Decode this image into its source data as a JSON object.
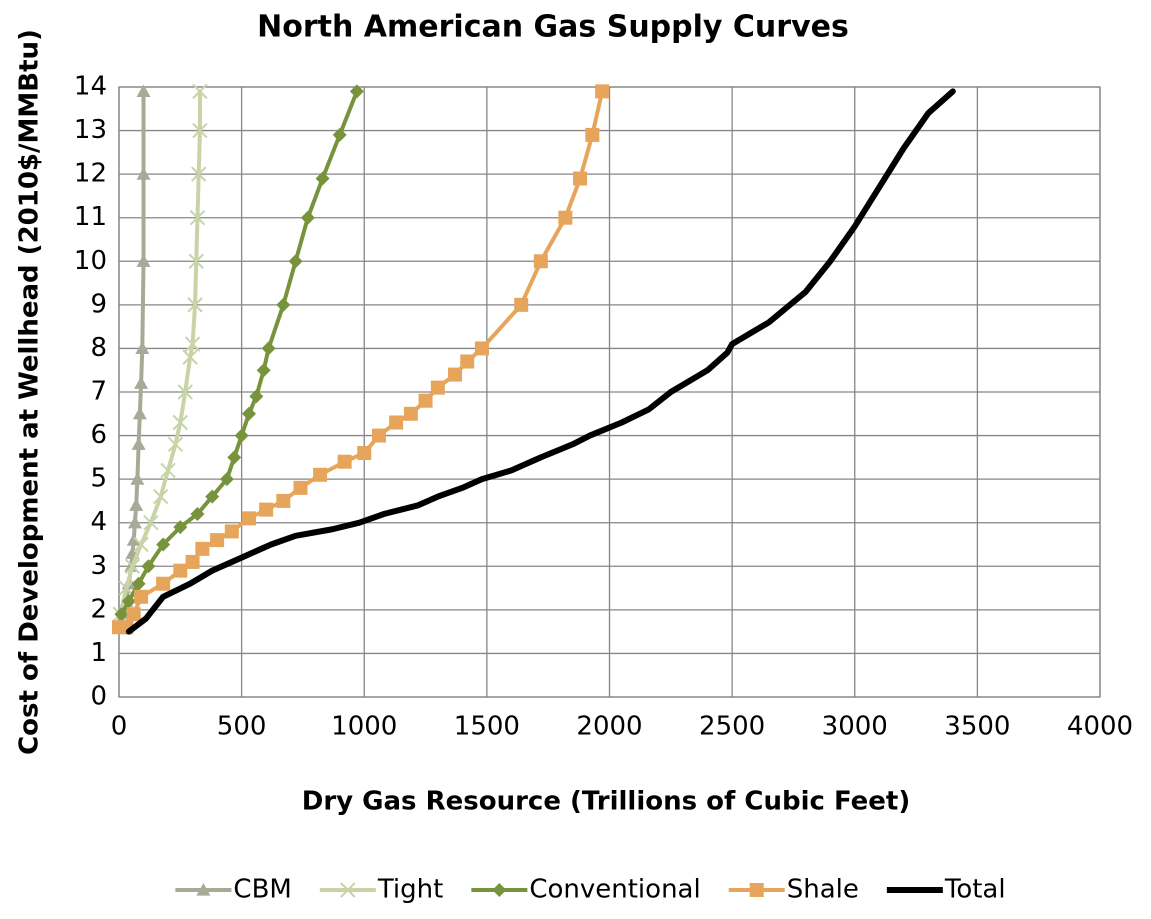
{
  "chart_data": {
    "type": "line",
    "title": "North American Gas Supply Curves",
    "xlabel": "Dry Gas Resource (Trillions of Cubic Feet)",
    "ylabel": "Cost of Development at Wellhead (2010$/MMBtu)",
    "xlim": [
      0,
      4000
    ],
    "xticks": [
      0,
      500,
      1000,
      1500,
      2000,
      2500,
      3000,
      3500,
      4000
    ],
    "ylim": [
      0,
      14
    ],
    "yticks": [
      0,
      1,
      2,
      3,
      4,
      5,
      6,
      7,
      8,
      9,
      10,
      11,
      12,
      13,
      14
    ],
    "grid": true,
    "legend": "bottom",
    "series": [
      {
        "name": "CBM",
        "color": "#a8aa98",
        "marker": "triangle",
        "x": [
          20,
          30,
          40,
          50,
          55,
          60,
          65,
          70,
          75,
          80,
          85,
          90,
          95,
          100,
          100,
          100
        ],
        "values": [
          1.9,
          2.2,
          2.6,
          3.0,
          3.3,
          3.6,
          4.0,
          4.4,
          5.0,
          5.8,
          6.5,
          7.2,
          8.0,
          10.0,
          12.0,
          13.9
        ]
      },
      {
        "name": "Tight",
        "color": "#c8d4a8",
        "marker": "x",
        "x": [
          5,
          30,
          55,
          90,
          130,
          170,
          200,
          230,
          250,
          270,
          290,
          300,
          310,
          315,
          320,
          325,
          330,
          330
        ],
        "values": [
          1.9,
          2.5,
          3.0,
          3.5,
          4.0,
          4.6,
          5.2,
          5.8,
          6.3,
          7.0,
          7.8,
          8.1,
          9.0,
          10.0,
          11.0,
          12.0,
          13.0,
          13.9
        ]
      },
      {
        "name": "Conventional",
        "color": "#77933c",
        "marker": "diamond",
        "x": [
          10,
          40,
          80,
          120,
          180,
          250,
          320,
          380,
          440,
          470,
          500,
          530,
          560,
          590,
          610,
          670,
          720,
          770,
          830,
          900,
          970
        ],
        "values": [
          1.9,
          2.2,
          2.6,
          3.0,
          3.5,
          3.9,
          4.2,
          4.6,
          5.0,
          5.5,
          6.0,
          6.5,
          6.9,
          7.5,
          8.0,
          9.0,
          10.0,
          11.0,
          11.9,
          12.9,
          13.9
        ]
      },
      {
        "name": "Shale",
        "color": "#e6a55a",
        "marker": "square",
        "x": [
          0,
          30,
          60,
          90,
          180,
          250,
          300,
          340,
          400,
          460,
          530,
          600,
          670,
          740,
          820,
          920,
          1000,
          1060,
          1130,
          1190,
          1250,
          1300,
          1370,
          1420,
          1480,
          1640,
          1720,
          1820,
          1880,
          1930,
          1970
        ],
        "values": [
          1.6,
          1.6,
          1.9,
          2.3,
          2.6,
          2.9,
          3.1,
          3.4,
          3.6,
          3.8,
          4.1,
          4.3,
          4.5,
          4.8,
          5.1,
          5.4,
          5.6,
          6.0,
          6.3,
          6.5,
          6.8,
          7.1,
          7.4,
          7.7,
          8.0,
          9.0,
          10.0,
          11.0,
          11.9,
          12.9,
          13.9
        ]
      },
      {
        "name": "Total",
        "color": "#000000",
        "marker": "none",
        "x": [
          40,
          110,
          180,
          290,
          380,
          500,
          620,
          720,
          870,
          980,
          1080,
          1220,
          1300,
          1400,
          1480,
          1600,
          1720,
          1850,
          1920,
          2050,
          2160,
          2250,
          2400,
          2480,
          2500,
          2650,
          2800,
          2900,
          3000,
          3100,
          3200,
          3300,
          3400
        ],
        "values": [
          1.5,
          1.8,
          2.3,
          2.6,
          2.9,
          3.2,
          3.5,
          3.7,
          3.85,
          4.0,
          4.2,
          4.4,
          4.6,
          4.8,
          5.0,
          5.2,
          5.5,
          5.8,
          6.0,
          6.3,
          6.6,
          7.0,
          7.5,
          7.9,
          8.1,
          8.6,
          9.3,
          10.0,
          10.8,
          11.7,
          12.6,
          13.4,
          13.9
        ]
      }
    ]
  }
}
